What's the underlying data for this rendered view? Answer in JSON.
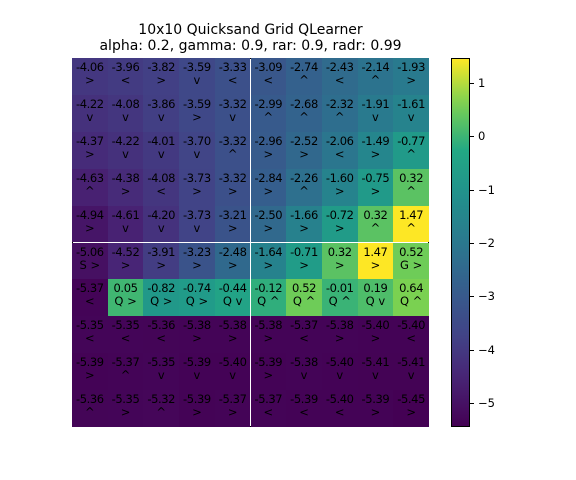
{
  "chart_data": {
    "type": "heatmap",
    "title": "10x10 Quicksand Grid QLearner",
    "subtitle": "alpha: 0.2, gamma: 0.9, rar: 0.9, radr: 0.99",
    "rows": 10,
    "cols": 10,
    "values": [
      [
        -4.06,
        -3.96,
        -3.82,
        -3.59,
        -3.33,
        -3.09,
        -2.74,
        -2.43,
        -2.14,
        -1.93
      ],
      [
        -4.22,
        -4.08,
        -3.86,
        -3.59,
        -3.32,
        -2.99,
        -2.68,
        -2.32,
        -1.91,
        -1.61
      ],
      [
        -4.37,
        -4.22,
        -4.01,
        -3.7,
        -3.32,
        -2.96,
        -2.52,
        -2.06,
        -1.49,
        -0.77
      ],
      [
        -4.63,
        -4.38,
        -4.08,
        -3.73,
        -3.32,
        -2.84,
        -2.26,
        -1.6,
        -0.75,
        0.32
      ],
      [
        -4.94,
        -4.61,
        -4.2,
        -3.73,
        -3.21,
        -2.5,
        -1.66,
        -0.72,
        0.32,
        1.47
      ],
      [
        -5.06,
        -4.52,
        -3.91,
        -3.23,
        -2.48,
        -1.64,
        -0.71,
        0.32,
        1.47,
        0.52
      ],
      [
        -5.37,
        0.05,
        -0.82,
        -0.74,
        -0.44,
        -0.12,
        0.52,
        -0.01,
        0.19,
        0.64
      ],
      [
        -5.35,
        -5.35,
        -5.36,
        -5.38,
        -5.38,
        -5.38,
        -5.37,
        -5.38,
        -5.4,
        -5.4
      ],
      [
        -5.39,
        -5.37,
        -5.35,
        -5.39,
        -5.4,
        -5.39,
        -5.38,
        -5.4,
        -5.41,
        -5.41
      ],
      [
        -5.36,
        -5.35,
        -5.32,
        -5.39,
        -5.37,
        -5.37,
        -5.39,
        -5.4,
        -5.39,
        -5.45
      ]
    ],
    "labels": [
      [
        ">",
        "<",
        ">",
        "v",
        "<",
        "<",
        "^",
        "<",
        "^",
        ">"
      ],
      [
        "v",
        "v",
        "v",
        ">",
        "v",
        "^",
        "^",
        "^",
        "v",
        "v"
      ],
      [
        ">",
        "v",
        "v",
        "v",
        "^",
        ">",
        ">",
        "<",
        ">",
        "^"
      ],
      [
        "^",
        ">",
        "<",
        ">",
        ">",
        ">",
        "^",
        ">",
        ">",
        "^"
      ],
      [
        ">",
        "v",
        "v",
        "v",
        ">",
        ">",
        ">",
        ">",
        "^",
        "^"
      ],
      [
        "S >",
        ">",
        ">",
        ">",
        ">",
        ">",
        ">",
        ">",
        ">",
        "G >"
      ],
      [
        "<",
        "Q >",
        "Q >",
        "Q >",
        "Q v",
        "Q ^",
        "Q ^",
        "Q ^",
        "Q v",
        "Q ^"
      ],
      [
        "<",
        "<",
        "<",
        ">",
        ">",
        ">",
        "<",
        ">",
        ">",
        "<"
      ],
      [
        ">",
        "^",
        "v",
        "v",
        "v",
        ">",
        "v",
        "v",
        "v",
        "v"
      ],
      [
        "^",
        ">",
        "^",
        ">",
        ">",
        "<",
        "<",
        "<",
        ">",
        ">"
      ]
    ],
    "colorbar": {
      "colormap": "viridis",
      "range": [
        -5.45,
        1.47
      ],
      "ticks": [
        1,
        0,
        -1,
        -2,
        -3,
        -4,
        -5
      ]
    }
  }
}
